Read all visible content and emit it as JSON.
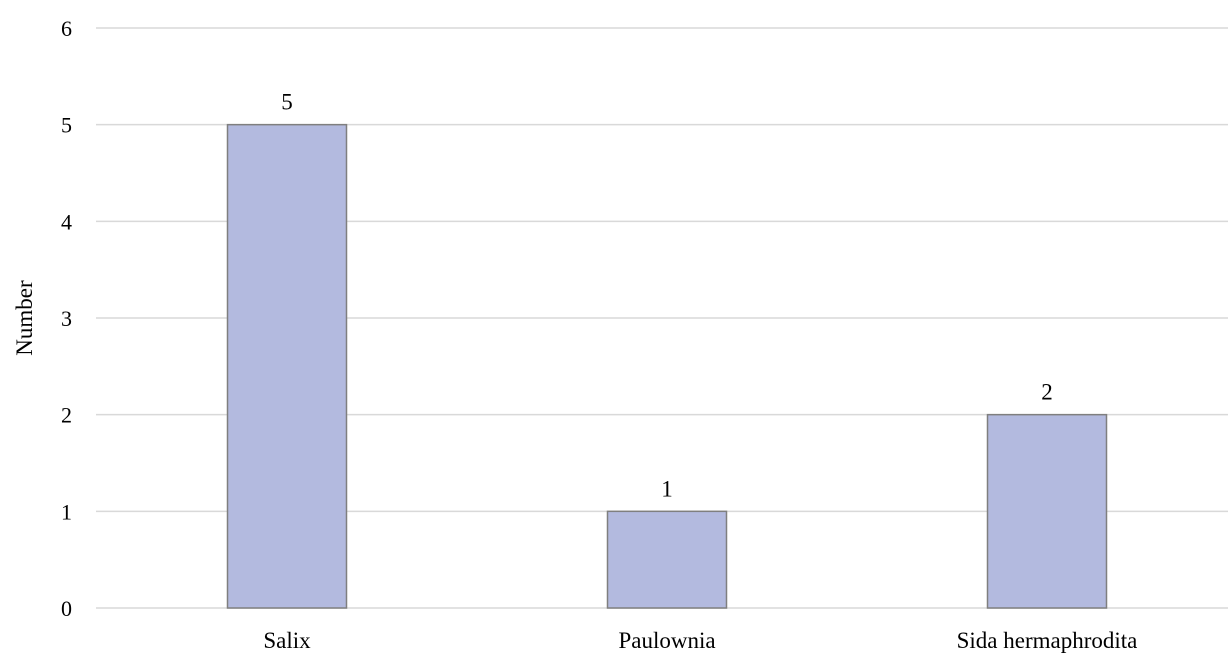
{
  "chart_data": {
    "type": "bar",
    "title": "",
    "xlabel": "",
    "ylabel": "Number",
    "categories": [
      "Salix",
      "Paulownia",
      "Sida hermaphrodita"
    ],
    "values": [
      5,
      1,
      2
    ],
    "data_labels": [
      "5",
      "1",
      "2"
    ],
    "ylim": [
      0,
      6
    ],
    "yticks": [
      0,
      1,
      2,
      3,
      4,
      5,
      6
    ],
    "grid": "horizontal",
    "legend": "none",
    "colors": {
      "bar_fill": "#b3badf",
      "bar_stroke": "#7f7f7f",
      "grid": "#d9d9d9",
      "axis": "#d9d9d9"
    }
  }
}
